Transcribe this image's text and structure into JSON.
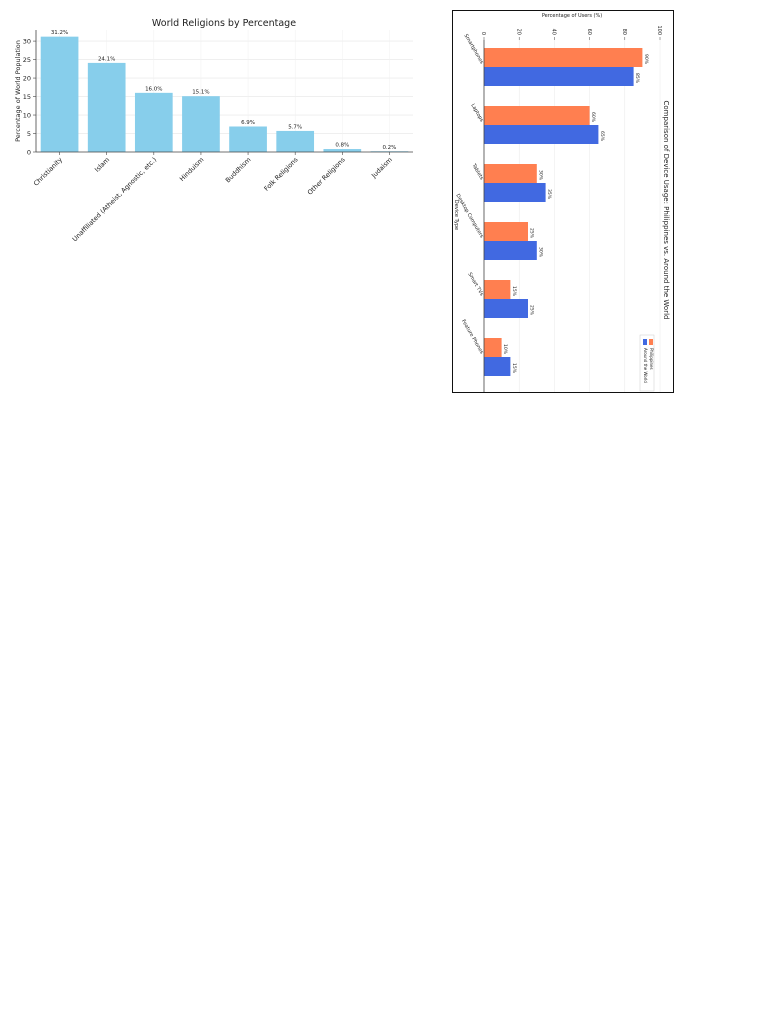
{
  "chart_data": [
    {
      "type": "bar",
      "title": "World Religions by Percentage",
      "xlabel": "",
      "ylabel": "Percentage of World Population",
      "categories": [
        "Christianity",
        "Islam",
        "Unaffiliated (Atheist, Agnostic, etc.)",
        "Hinduism",
        "Buddhism",
        "Folk Religions",
        "Other Religions",
        "Judaism"
      ],
      "values": [
        31.2,
        24.1,
        16.0,
        15.1,
        6.9,
        5.7,
        0.8,
        0.2
      ],
      "value_labels": [
        "31.2%",
        "24.1%",
        "16.0%",
        "15.1%",
        "6.9%",
        "5.7%",
        "0.8%",
        "0.2%"
      ],
      "yticks": [
        0,
        5,
        10,
        15,
        20,
        25,
        30
      ],
      "ylim": [
        0,
        33
      ],
      "grid": true,
      "bar_color": "#87ceeb"
    },
    {
      "type": "bar",
      "orientation": "horizontal",
      "rotation": "image rotated 90 degrees clockwise",
      "title": "Comparison of Device Usage: Philippines vs. Around the World",
      "xlabel": "Percentage of Users (%)",
      "ylabel": "Device Type",
      "categories": [
        "Smartphones",
        "Laptops",
        "Tablets",
        "Desktop Computers",
        "Smart TVs",
        "Feature Phones"
      ],
      "series": [
        {
          "name": "Philippines",
          "color": "#ff7f50",
          "values": [
            90,
            60,
            30,
            25,
            15,
            10
          ],
          "labels": [
            "90%",
            "60%",
            "30%",
            "25%",
            "15%",
            "10%"
          ]
        },
        {
          "name": "Around the World",
          "color": "#4169e1",
          "values": [
            85,
            65,
            35,
            30,
            25,
            15
          ],
          "labels": [
            "85%",
            "65%",
            "35%",
            "30%",
            "25%",
            "15%"
          ]
        }
      ],
      "xticks": [
        0,
        20,
        40,
        60,
        80,
        100
      ],
      "xlim": [
        0,
        100
      ],
      "legend_placement": "lower-right",
      "grid": true
    }
  ]
}
